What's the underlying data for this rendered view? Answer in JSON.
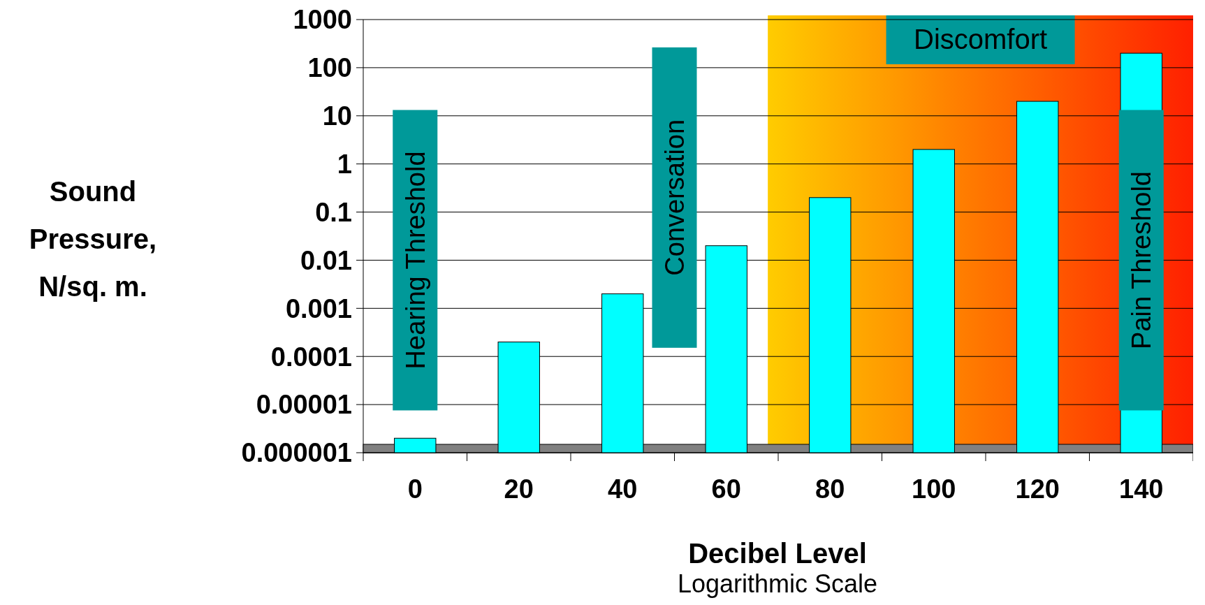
{
  "chart_data": {
    "type": "bar",
    "xlabel": "Decibel Level",
    "ylabel": "Sound Pressure, N/sq. m.",
    "categories": [
      "0",
      "20",
      "40",
      "60",
      "80",
      "100",
      "120",
      "140"
    ],
    "values": [
      2e-06,
      0.0002,
      0.002,
      0.02,
      0.2,
      2,
      20,
      200
    ],
    "color": "#00ffff",
    "log": true,
    "ylim": [
      1e-06,
      1000
    ],
    "yticks": [
      {
        "value": 1e-06,
        "label": "0.000001"
      },
      {
        "value": 1e-05,
        "label": "0.00001"
      },
      0.0001,
      0.001,
      0.01,
      0.1,
      1,
      10,
      100,
      1000
    ],
    "grid": "y",
    "bands": [
      {
        "axis": "x",
        "from": "80",
        "to": "140",
        "label": "Discomfort",
        "color": "#ff2000"
      }
    ],
    "annotations": [
      "Hearing Threshold",
      "Conversation",
      "Pain Threshold",
      "Logarithmic Scale"
    ]
  }
}
